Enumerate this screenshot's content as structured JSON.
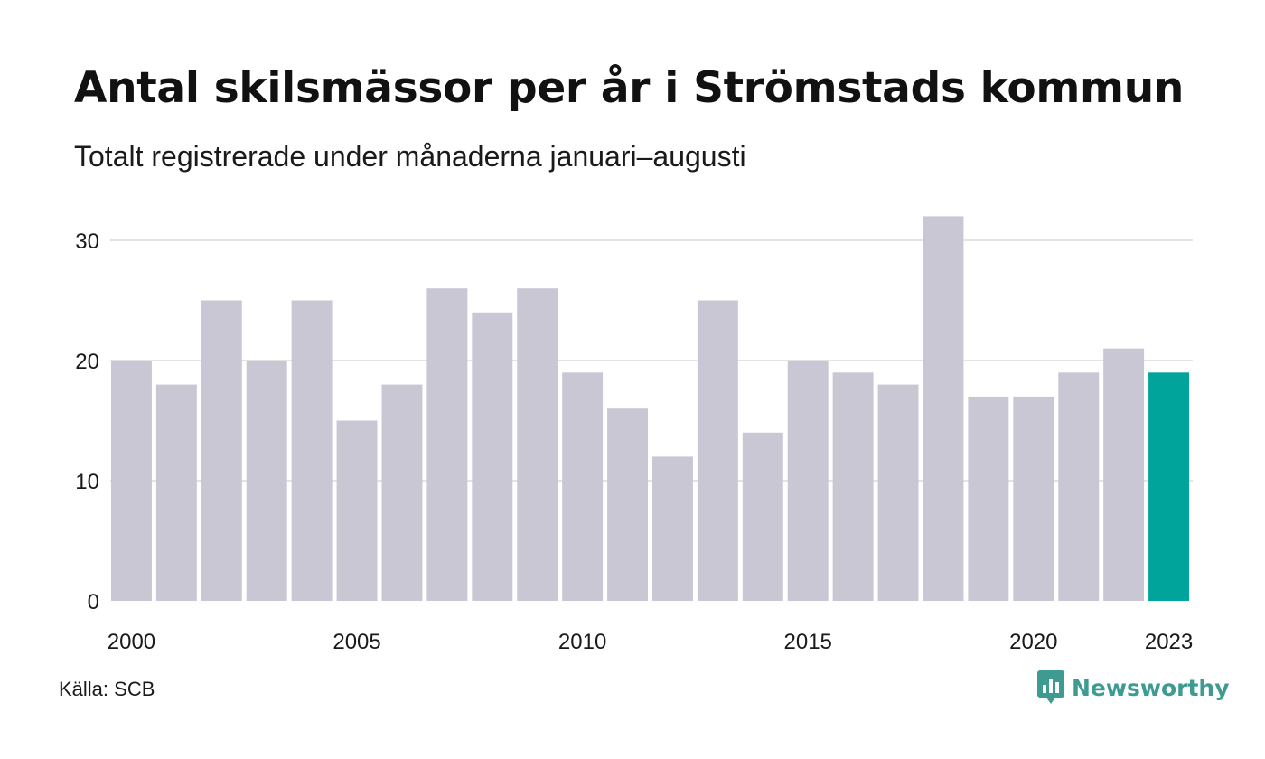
{
  "title": "Antal skilsmässor per år i Strömstads kommun",
  "subtitle": "Totalt registrerade under månaderna januari–augusti",
  "source": "Källa: SCB",
  "logo_text": "Newsworthy",
  "colors": {
    "bar": "#c8c7d3",
    "highlight": "#00a49a",
    "grid": "#e3e3e3",
    "logo": "#3d9b91"
  },
  "chart_data": {
    "type": "bar",
    "categories": [
      "2000",
      "2001",
      "2002",
      "2003",
      "2004",
      "2005",
      "2006",
      "2007",
      "2008",
      "2009",
      "2010",
      "2011",
      "2012",
      "2013",
      "2014",
      "2015",
      "2016",
      "2017",
      "2018",
      "2019",
      "2020",
      "2021",
      "2022",
      "2023"
    ],
    "values": [
      20,
      18,
      25,
      20,
      25,
      15,
      18,
      26,
      24,
      26,
      19,
      16,
      12,
      25,
      14,
      20,
      19,
      18,
      32,
      17,
      17,
      19,
      21,
      19
    ],
    "highlight_category": "2023",
    "xtick_labels": [
      "2000",
      "2005",
      "2010",
      "2015",
      "2020",
      "2023"
    ],
    "yticks": [
      0,
      10,
      20,
      30
    ],
    "ylim": [
      0,
      32
    ],
    "grid": true,
    "xlabel": "",
    "ylabel": ""
  }
}
